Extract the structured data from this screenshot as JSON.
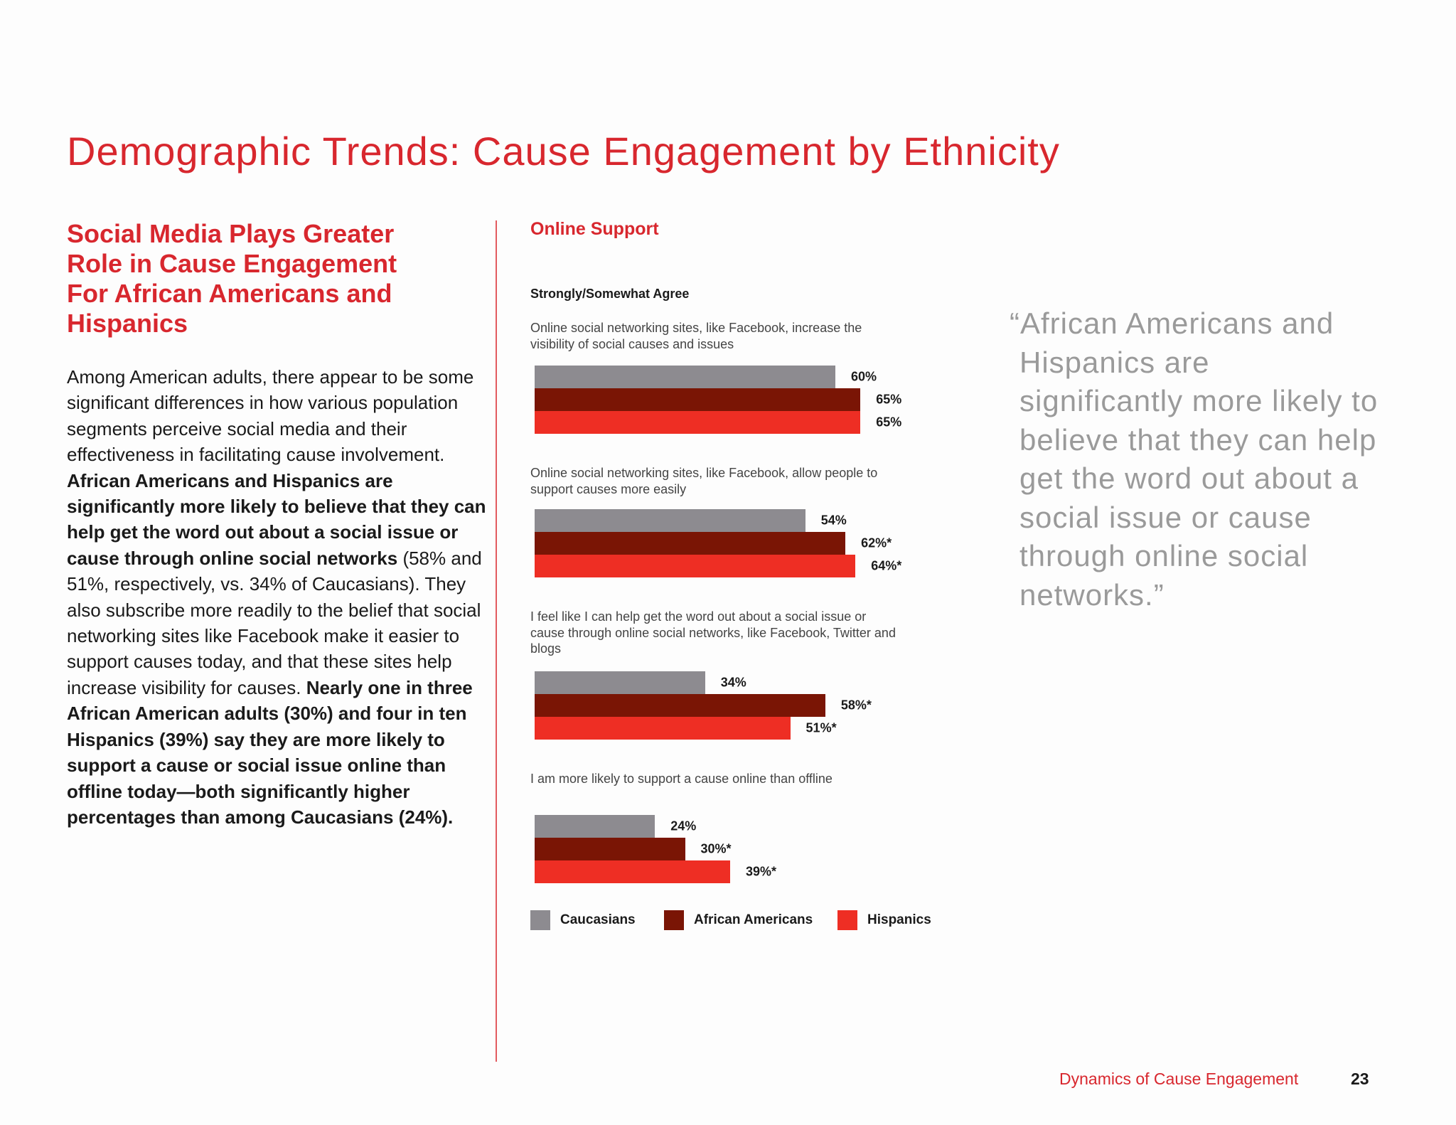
{
  "page": {
    "title": "Demographic Trends: Cause Engagement by Ethnicity",
    "footer_label": "Dynamics of Cause Engagement",
    "page_number": "23"
  },
  "left": {
    "subhead": "Social Media Plays Greater Role in Cause Engagement For African Americans and Hispanics",
    "body_runs": [
      {
        "text": "Among American adults, there appear to be some significant differences in how various population segments perceive social media and their effectiveness in facilitating cause involvement. ",
        "bold": false
      },
      {
        "text": "African Americans and Hispanics are significantly more likely to believe that they can help get the word out about a social issue or cause through online social networks",
        "bold": true
      },
      {
        "text": " (58% and 51%, respectively, vs. 34% of Caucasians). They also subscribe more readily to the belief that social networking sites like Facebook make it easier to support causes today, and that these sites help increase visibility for causes. ",
        "bold": false
      },
      {
        "text": "Nearly one in three African American adults (30%) and four in ten Hispanics (39%) say they are more likely to support a cause or social issue online than offline today—both significantly higher percentages than among Caucasians (24%).",
        "bold": true
      }
    ]
  },
  "quote": "“African Americans and Hispanics are significantly more likely to believe that they can help get the word out about a social issue or cause through online social networks.”",
  "colors": {
    "accent": "#d8272e",
    "caucasians": "#8d8b90",
    "african_americans": "#7a1505",
    "hispanics": "#ee2e24"
  },
  "chart_data": {
    "type": "bar",
    "orientation": "horizontal",
    "title": "Online Support",
    "subtitle": "Strongly/Somewhat Agree",
    "categories": [
      "Online social networking sites, like Facebook, increase the visibility of social causes and issues",
      "Online social networking sites, like Facebook, allow people to support causes more easily",
      "I feel like I can help get the word out about a social issue or cause through online social networks, like Facebook, Twitter and blogs",
      "I am more likely to support a cause online than offline"
    ],
    "series": [
      {
        "name": "Caucasians",
        "color": "#8d8b90",
        "values": [
          60,
          54,
          34,
          24
        ],
        "labels": [
          "60%",
          "54%",
          "34%",
          "24%"
        ]
      },
      {
        "name": "African Americans",
        "color": "#7a1505",
        "values": [
          65,
          62,
          58,
          30
        ],
        "labels": [
          "65%",
          "62%*",
          "58%*",
          "30%*"
        ]
      },
      {
        "name": "Hispanics",
        "color": "#ee2e24",
        "values": [
          65,
          64,
          51,
          39
        ],
        "labels": [
          "65%",
          "64%*",
          "51%*",
          "39%*"
        ]
      }
    ],
    "xlim": [
      0,
      100
    ],
    "legend_position": "bottom"
  }
}
